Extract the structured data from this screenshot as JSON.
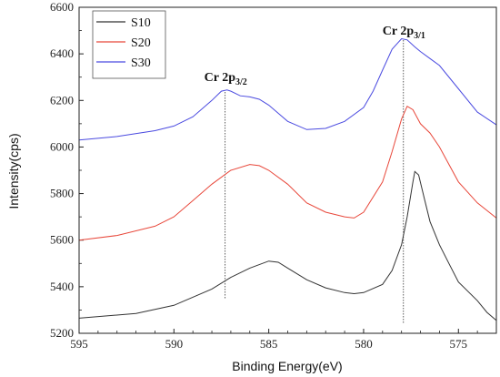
{
  "chart_data": {
    "type": "line",
    "title": "",
    "xlabel": "Binding Energy(eV)",
    "ylabel": "Intensity(cps)",
    "xlim": [
      595,
      573
    ],
    "ylim": [
      5200,
      6600
    ],
    "x_reversed": true,
    "xticks": [
      595,
      590,
      585,
      580,
      575
    ],
    "yticks": [
      5200,
      5400,
      5600,
      5800,
      6000,
      6200,
      6400,
      6600
    ],
    "legend_position": "top-left",
    "series": [
      {
        "name": "S10",
        "color": "#333333",
        "points": [
          [
            595,
            5265
          ],
          [
            592,
            5285
          ],
          [
            590,
            5320
          ],
          [
            588,
            5390
          ],
          [
            587,
            5440
          ],
          [
            586,
            5480
          ],
          [
            585,
            5510
          ],
          [
            584.5,
            5505
          ],
          [
            584,
            5480
          ],
          [
            583,
            5430
          ],
          [
            582,
            5395
          ],
          [
            581,
            5375
          ],
          [
            580.5,
            5370
          ],
          [
            580,
            5375
          ],
          [
            579,
            5410
          ],
          [
            578.5,
            5470
          ],
          [
            578,
            5580
          ],
          [
            577.7,
            5700
          ],
          [
            577.4,
            5850
          ],
          [
            577.3,
            5895
          ],
          [
            577.1,
            5880
          ],
          [
            576.8,
            5780
          ],
          [
            576.5,
            5680
          ],
          [
            576,
            5580
          ],
          [
            575.5,
            5500
          ],
          [
            575,
            5420
          ],
          [
            574,
            5340
          ],
          [
            573.5,
            5290
          ],
          [
            573,
            5255
          ]
        ]
      },
      {
        "name": "S20",
        "color": "#e8473a",
        "points": [
          [
            595,
            5600
          ],
          [
            593,
            5620
          ],
          [
            591,
            5660
          ],
          [
            590,
            5700
          ],
          [
            589,
            5770
          ],
          [
            588,
            5840
          ],
          [
            587,
            5900
          ],
          [
            586,
            5925
          ],
          [
            585.5,
            5920
          ],
          [
            585,
            5900
          ],
          [
            584,
            5840
          ],
          [
            583,
            5760
          ],
          [
            582,
            5720
          ],
          [
            581,
            5700
          ],
          [
            580.5,
            5695
          ],
          [
            580,
            5720
          ],
          [
            579,
            5850
          ],
          [
            578.5,
            5980
          ],
          [
            578,
            6120
          ],
          [
            577.7,
            6175
          ],
          [
            577.4,
            6160
          ],
          [
            577,
            6100
          ],
          [
            576.5,
            6060
          ],
          [
            576,
            6000
          ],
          [
            575,
            5850
          ],
          [
            574,
            5760
          ],
          [
            573,
            5695
          ]
        ]
      },
      {
        "name": "S30",
        "color": "#4a4ae0",
        "points": [
          [
            595,
            6030
          ],
          [
            593,
            6045
          ],
          [
            591,
            6070
          ],
          [
            590,
            6090
          ],
          [
            589,
            6130
          ],
          [
            588,
            6200
          ],
          [
            587.5,
            6240
          ],
          [
            587.2,
            6245
          ],
          [
            587,
            6240
          ],
          [
            586.5,
            6220
          ],
          [
            586,
            6215
          ],
          [
            585.5,
            6205
          ],
          [
            585,
            6180
          ],
          [
            584,
            6110
          ],
          [
            583,
            6075
          ],
          [
            582,
            6080
          ],
          [
            581,
            6110
          ],
          [
            580,
            6170
          ],
          [
            579.5,
            6240
          ],
          [
            579,
            6330
          ],
          [
            578.5,
            6420
          ],
          [
            578,
            6465
          ],
          [
            577.7,
            6460
          ],
          [
            577.3,
            6430
          ],
          [
            577,
            6410
          ],
          [
            576.5,
            6380
          ],
          [
            576,
            6350
          ],
          [
            575,
            6250
          ],
          [
            574,
            6150
          ],
          [
            573,
            6095
          ]
        ]
      }
    ],
    "annotations": [
      {
        "main": "Cr 2p",
        "sub": "3/2",
        "x": 587.3
      },
      {
        "main": "Cr 2p",
        "sub": "3/1",
        "x": 577.9
      }
    ]
  }
}
